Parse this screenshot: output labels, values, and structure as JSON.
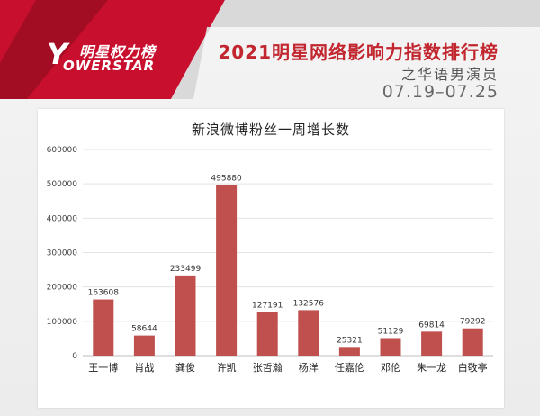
{
  "header": {
    "logo_cn": "明星权力榜",
    "logo_en": "OWERSTAR",
    "logo_y": "Y",
    "title": "2021明星网络影响力指数排行榜",
    "subtitle": "之华语男演员",
    "date_range": "07.19–07.25"
  },
  "colors": {
    "accent": "#c2262f",
    "bar": "#c0504d"
  },
  "chart_data": {
    "type": "bar",
    "title": "新浪微博粉丝一周增长数",
    "categories": [
      "王一博",
      "肖战",
      "龚俊",
      "许凯",
      "张哲瀚",
      "杨洋",
      "任嘉伦",
      "邓伦",
      "朱一龙",
      "白敬亭"
    ],
    "values": [
      163608,
      58644,
      233499,
      495880,
      127191,
      132576,
      25321,
      51129,
      69814,
      79292
    ],
    "value_labels": [
      "163608",
      "58644",
      "233499",
      "495880",
      "127191",
      "132576",
      "25321",
      "51129",
      "69814",
      "79292"
    ],
    "ylim": [
      0,
      600000
    ],
    "yticks": [
      "0",
      "100000",
      "200000",
      "300000",
      "400000",
      "500000",
      "600000"
    ],
    "ytick_values": [
      0,
      100000,
      200000,
      300000,
      400000,
      500000,
      600000
    ],
    "grid": true,
    "xlabel": "",
    "ylabel": ""
  }
}
